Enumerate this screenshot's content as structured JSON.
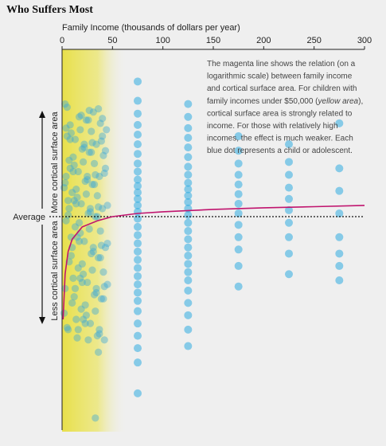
{
  "title": "Who Suffers Most",
  "chart_data": {
    "type": "scatter",
    "x_axis": {
      "label": "Family Income (thousands of dollars per year)",
      "ticks": [
        0,
        50,
        100,
        150,
        200,
        250,
        300
      ],
      "range": [
        0,
        300
      ],
      "position": "top"
    },
    "y_axis": {
      "top_label": "More cortical surface area",
      "bottom_label": "Less cortical surface area",
      "reference_label": "Average",
      "range": [
        -1,
        1
      ]
    },
    "highlight_region": {
      "label": "yellow area",
      "x_range": [
        0,
        50
      ],
      "color": "#e8e04a"
    },
    "annotation_lines": [
      "The magenta line shows the relation (on a",
      "logarithmic scale) between family income",
      "and cortical surface area. For children with",
      "family incomes under $50,000 (",
      "yellow area",
      "),",
      "cortical surface area is strongly related to",
      "income. For those with relatively high",
      "incomes, the effect is much weaker. Each",
      "blue dot represents a child or adolescent."
    ],
    "trend_line": {
      "color": "#c0146e",
      "points": [
        [
          1,
          -0.5
        ],
        [
          3,
          -0.28
        ],
        [
          6,
          -0.17
        ],
        [
          10,
          -0.11
        ],
        [
          20,
          -0.05
        ],
        [
          35,
          -0.02
        ],
        [
          50,
          0.0
        ],
        [
          75,
          0.02
        ],
        [
          100,
          0.03
        ],
        [
          150,
          0.045
        ],
        [
          200,
          0.055
        ],
        [
          250,
          0.062
        ],
        [
          300,
          0.07
        ]
      ]
    },
    "scatter_series": [
      {
        "x": 75,
        "y": [
          0.84,
          0.72,
          0.64,
          0.57,
          0.51,
          0.45,
          0.39,
          0.33,
          0.28,
          0.23,
          0.19,
          0.15,
          0.11,
          0.07,
          0.03,
          -0.01,
          -0.05,
          -0.09,
          -0.13,
          -0.17,
          -0.21,
          -0.25,
          -0.29,
          -0.33,
          -0.37,
          -0.41,
          -0.46,
          -0.52,
          -0.58,
          -0.64,
          -0.71,
          -0.86
        ]
      },
      {
        "x": 125,
        "y": [
          0.7,
          0.62,
          0.55,
          0.49,
          0.43,
          0.37,
          0.31,
          0.26,
          0.21,
          0.17,
          0.13,
          0.09,
          0.05,
          0.01,
          -0.03,
          -0.07,
          -0.11,
          -0.15,
          -0.19,
          -0.23,
          -0.27,
          -0.31,
          -0.36,
          -0.42,
          -0.48,
          -0.55,
          -0.63
        ]
      },
      {
        "x": 175,
        "y": [
          0.5,
          0.41,
          0.33,
          0.26,
          0.2,
          0.14,
          0.08,
          0.02,
          -0.04,
          -0.1,
          -0.16,
          -0.24,
          -0.34
        ]
      },
      {
        "x": 225,
        "y": [
          0.45,
          0.34,
          0.26,
          0.18,
          0.11,
          0.04,
          -0.03,
          -0.1,
          -0.18,
          -0.28
        ]
      },
      {
        "x": 275,
        "y": [
          0.58,
          0.3,
          0.16,
          0.02,
          -0.1,
          -0.18,
          -0.24,
          -0.31
        ]
      }
    ],
    "low_income_points": [
      [
        3,
        0.7
      ],
      [
        5,
        0.5
      ],
      [
        8,
        0.3
      ],
      [
        12,
        0.1
      ],
      [
        15,
        -0.1
      ],
      [
        18,
        -0.3
      ],
      [
        21,
        -0.5
      ],
      [
        24,
        0.6
      ],
      [
        27,
        0.4
      ],
      [
        30,
        0.2
      ],
      [
        33,
        0.0
      ],
      [
        36,
        -0.2
      ],
      [
        39,
        -0.4
      ],
      [
        42,
        -0.6
      ],
      [
        4,
        0.55
      ],
      [
        7,
        0.35
      ],
      [
        10,
        0.15
      ],
      [
        13,
        -0.05
      ],
      [
        16,
        -0.25
      ],
      [
        19,
        -0.45
      ],
      [
        22,
        0.45
      ],
      [
        25,
        0.25
      ],
      [
        28,
        0.05
      ],
      [
        31,
        -0.15
      ],
      [
        34,
        -0.35
      ],
      [
        37,
        -0.55
      ],
      [
        40,
        0.5
      ],
      [
        43,
        0.3
      ],
      [
        6,
        0.1
      ],
      [
        9,
        -0.1
      ],
      [
        11,
        -0.3
      ],
      [
        14,
        -0.5
      ],
      [
        17,
        0.62
      ],
      [
        20,
        0.42
      ],
      [
        23,
        0.22
      ],
      [
        26,
        0.02
      ],
      [
        29,
        -0.18
      ],
      [
        32,
        -0.38
      ],
      [
        35,
        -0.58
      ],
      [
        38,
        0.58
      ],
      [
        41,
        0.38
      ],
      [
        2,
        0.18
      ],
      [
        4,
        -0.02
      ],
      [
        7,
        -0.22
      ],
      [
        10,
        -0.42
      ],
      [
        13,
        0.48
      ],
      [
        16,
        0.28
      ],
      [
        19,
        0.08
      ],
      [
        22,
        -0.12
      ],
      [
        25,
        -0.32
      ],
      [
        28,
        -0.52
      ],
      [
        31,
        0.65
      ],
      [
        34,
        0.45
      ],
      [
        37,
        0.25
      ],
      [
        40,
        0.05
      ],
      [
        43,
        -0.15
      ],
      [
        3,
        -0.35
      ],
      [
        6,
        -0.55
      ],
      [
        9,
        0.52
      ],
      [
        12,
        0.32
      ],
      [
        15,
        0.12
      ],
      [
        18,
        -0.08
      ],
      [
        21,
        -0.28
      ],
      [
        24,
        -0.48
      ],
      [
        27,
        0.66
      ],
      [
        30,
        0.46
      ],
      [
        33,
        0.26
      ],
      [
        36,
        0.06
      ],
      [
        39,
        -0.14
      ],
      [
        42,
        -0.34
      ],
      [
        5,
        -0.54
      ],
      [
        8,
        0.57
      ],
      [
        11,
        0.37
      ],
      [
        14,
        0.17
      ],
      [
        17,
        -0.03
      ],
      [
        20,
        -0.23
      ],
      [
        23,
        -0.43
      ],
      [
        26,
        -0.6
      ],
      [
        29,
        0.53
      ],
      [
        32,
        0.33
      ],
      [
        35,
        0.13
      ],
      [
        38,
        -0.07
      ],
      [
        41,
        -0.27
      ],
      [
        2,
        -0.47
      ],
      [
        5,
        0.68
      ],
      [
        8,
        0.48
      ],
      [
        11,
        0.28
      ],
      [
        14,
        0.08
      ],
      [
        17,
        -0.12
      ],
      [
        20,
        -0.32
      ],
      [
        23,
        -0.52
      ],
      [
        26,
        0.6
      ],
      [
        29,
        0.4
      ],
      [
        32,
        0.2
      ],
      [
        35,
        0.0
      ],
      [
        38,
        -0.2
      ],
      [
        41,
        -0.4
      ],
      [
        4,
        0.25
      ],
      [
        7,
        0.05
      ],
      [
        10,
        -0.15
      ],
      [
        13,
        -0.35
      ],
      [
        16,
        -0.55
      ],
      [
        19,
        0.63
      ],
      [
        22,
        0.43
      ],
      [
        25,
        0.23
      ],
      [
        28,
        0.03
      ],
      [
        31,
        -0.17
      ],
      [
        34,
        -0.37
      ],
      [
        37,
        -0.57
      ],
      [
        40,
        0.61
      ],
      [
        43,
        0.41
      ],
      [
        3,
        0.21
      ],
      [
        6,
        0.01
      ],
      [
        9,
        -0.19
      ],
      [
        12,
        -0.39
      ],
      [
        15,
        -0.59
      ],
      [
        18,
        0.54
      ],
      [
        21,
        0.34
      ],
      [
        24,
        0.14
      ],
      [
        27,
        -0.06
      ],
      [
        30,
        -0.26
      ],
      [
        33,
        -0.46
      ],
      [
        36,
        0.67
      ],
      [
        39,
        0.47
      ],
      [
        42,
        0.27
      ],
      [
        45,
        0.07
      ],
      [
        45,
        -0.13
      ],
      [
        45,
        -0.33
      ],
      [
        44,
        0.54
      ],
      [
        36,
        -0.66
      ],
      [
        33,
        -0.98
      ]
    ]
  }
}
